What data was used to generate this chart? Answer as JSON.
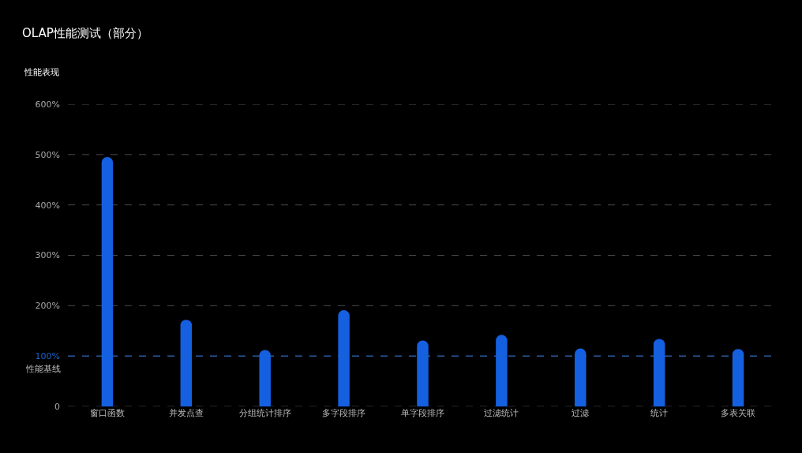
{
  "chart_data": {
    "type": "bar",
    "title": "OLAP性能测试（部分）",
    "ylabel": "性能表现",
    "categories": [
      "窗口函数",
      "并发点查",
      "分组统计排序",
      "多字段排序",
      "单字段排序",
      "过滤统计",
      "过滤",
      "统计",
      "多表关联"
    ],
    "values": [
      495,
      172,
      112,
      191,
      131,
      142,
      115,
      134,
      114
    ],
    "color": "#1560e0",
    "ylim": [
      0,
      600
    ],
    "yticks": [
      0,
      {
        "value": 100,
        "label": "100%"
      },
      {
        "value": 200,
        "label": "200%"
      },
      {
        "value": 300,
        "label": "300%"
      },
      {
        "value": 400,
        "label": "400%"
      },
      {
        "value": 500,
        "label": "500%"
      },
      {
        "value": 600,
        "label": "600%"
      }
    ],
    "grid": "y",
    "ref_lines": [
      {
        "axis": "y",
        "value": 100,
        "label": "性能基线",
        "color": "#1e64c8",
        "line_style": "dashed"
      }
    ]
  }
}
